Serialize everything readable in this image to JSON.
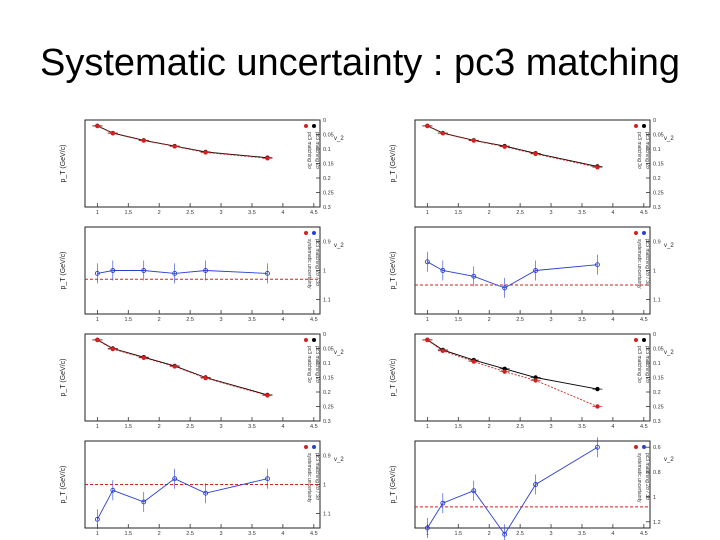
{
  "slide": {
    "title": "Systematic uncertainty : pc3 matching"
  },
  "chart_data": [
    {
      "type": "line",
      "panel": "ratio",
      "column": "left",
      "row": 4,
      "y_axis_title": "p_T (GeV/c)",
      "x_axis_title": "v_2",
      "y_ticks": [
        "1",
        "1.5",
        "2",
        "2.5",
        "3",
        "3.5",
        "4",
        "4.5"
      ],
      "x_ticks": [
        "0.9",
        "1",
        "1.1"
      ],
      "legend": [
        "pc3 matching 2σ / 3σ",
        "systematic uncertainty"
      ],
      "colors": {
        "points": "#2b3fd6",
        "reference": "#d42020"
      },
      "x": [
        1.0,
        1.25,
        1.75,
        2.25,
        2.75,
        3.75
      ],
      "values": [
        1.12,
        1.02,
        1.06,
        0.98,
        1.03,
        0.98
      ],
      "reference": 1.0
    },
    {
      "type": "line",
      "panel": "v2",
      "column": "left",
      "row": 3,
      "y_axis_title": "p_T (GeV/c)",
      "x_axis_title": "v_2",
      "y_ticks": [
        "1",
        "1.5",
        "2",
        "2.5",
        "3",
        "3.5",
        "4",
        "4.5"
      ],
      "x_ticks": [
        "0",
        "0.05",
        "0.1",
        "0.15",
        "0.2",
        "0.25",
        "0.3"
      ],
      "legend": [
        "pc3 matching 2σ",
        "pc3 matching 3σ"
      ],
      "colors": {
        "default": "#000000",
        "varied": "#d42020"
      },
      "x": [
        1.0,
        1.25,
        1.75,
        2.25,
        2.75,
        3.75
      ],
      "series": [
        {
          "values": [
            0.02,
            0.05,
            0.08,
            0.11,
            0.15,
            0.21
          ]
        },
        {
          "values": [
            0.021,
            0.052,
            0.082,
            0.112,
            0.152,
            0.212
          ]
        }
      ]
    },
    {
      "type": "line",
      "panel": "ratio",
      "column": "left",
      "row": 2,
      "y_axis_title": "p_T (GeV/c)",
      "x_axis_title": "v_2",
      "y_ticks": [
        "1",
        "1.5",
        "2",
        "2.5",
        "3",
        "3.5",
        "4",
        "4.5"
      ],
      "x_ticks": [
        "0.9",
        "1",
        "1.1"
      ],
      "legend": [
        "pc3 matching 2σ / 3σ",
        "systematic uncertainty"
      ],
      "colors": {
        "points": "#2b3fd6",
        "reference": "#d42020"
      },
      "x": [
        1.0,
        1.25,
        1.75,
        2.25,
        2.75,
        3.75
      ],
      "values": [
        1.01,
        1.0,
        1.0,
        1.01,
        1.0,
        1.01
      ],
      "reference": 1.03
    },
    {
      "type": "line",
      "panel": "v2",
      "column": "left",
      "row": 1,
      "y_axis_title": "p_T (GeV/c)",
      "x_axis_title": "v_2",
      "y_ticks": [
        "1",
        "1.5",
        "2",
        "2.5",
        "3",
        "3.5",
        "4",
        "4.5"
      ],
      "x_ticks": [
        "0",
        "0.05",
        "0.1",
        "0.15",
        "0.2",
        "0.25",
        "0.3"
      ],
      "legend": [
        "pc3 matching 2σ",
        "pc3 matching 3σ"
      ],
      "colors": {
        "default": "#000000",
        "varied": "#d42020"
      },
      "x": [
        1.0,
        1.25,
        1.75,
        2.25,
        2.75,
        3.75
      ],
      "series": [
        {
          "values": [
            0.02,
            0.045,
            0.07,
            0.09,
            0.11,
            0.13
          ]
        },
        {
          "values": [
            0.021,
            0.046,
            0.071,
            0.091,
            0.112,
            0.132
          ]
        }
      ]
    },
    {
      "type": "line",
      "panel": "ratio",
      "column": "right",
      "row": 4,
      "y_axis_title": "p_T (GeV/c)",
      "x_axis_title": "v_2",
      "y_ticks": [
        "1",
        "1.5",
        "2",
        "2.5",
        "3",
        "3.5",
        "4",
        "4.5"
      ],
      "x_ticks": [
        "0.6",
        "0.8",
        "1",
        "1.2"
      ],
      "legend": [
        "pc3 matching 2σ / 3σ",
        "systematic uncertainty"
      ],
      "colors": {
        "points": "#2b3fd6",
        "reference": "#d42020"
      },
      "x": [
        1.0,
        1.25,
        1.75,
        2.25,
        2.75,
        3.75
      ],
      "values": [
        1.25,
        1.05,
        0.95,
        1.3,
        0.9,
        0.6
      ],
      "reference": 1.08
    },
    {
      "type": "line",
      "panel": "v2",
      "column": "right",
      "row": 3,
      "y_axis_title": "p_T (GeV/c)",
      "x_axis_title": "v_2",
      "y_ticks": [
        "1",
        "1.5",
        "2",
        "2.5",
        "3",
        "3.5",
        "4",
        "4.5"
      ],
      "x_ticks": [
        "0",
        "0.05",
        "0.1",
        "0.15",
        "0.2",
        "0.25",
        "0.3"
      ],
      "legend": [
        "pc3 matching 2σ",
        "pc3 matching 3σ"
      ],
      "colors": {
        "default": "#000000",
        "varied": "#d42020"
      },
      "x": [
        1.0,
        1.25,
        1.75,
        2.25,
        2.75,
        3.75
      ],
      "series": [
        {
          "values": [
            0.02,
            0.055,
            0.09,
            0.12,
            0.15,
            0.19
          ]
        },
        {
          "values": [
            0.021,
            0.058,
            0.095,
            0.13,
            0.16,
            0.25
          ]
        }
      ]
    },
    {
      "type": "line",
      "panel": "ratio",
      "column": "right",
      "row": 2,
      "y_axis_title": "p_T (GeV/c)",
      "x_axis_title": "v_2",
      "y_ticks": [
        "1",
        "1.5",
        "2",
        "2.5",
        "3",
        "3.5",
        "4",
        "4.5"
      ],
      "x_ticks": [
        "0.9",
        "1",
        "1.1"
      ],
      "legend": [
        "pc3 matching 2σ / 3σ",
        "systematic uncertainty"
      ],
      "colors": {
        "points": "#2b3fd6",
        "reference": "#d42020"
      },
      "x": [
        1.0,
        1.25,
        1.75,
        2.25,
        2.75,
        3.75
      ],
      "values": [
        0.97,
        1.0,
        1.02,
        1.06,
        1.0,
        0.98
      ],
      "reference": 1.05
    },
    {
      "type": "line",
      "panel": "v2",
      "column": "right",
      "row": 1,
      "y_axis_title": "p_T (GeV/c)",
      "x_axis_title": "v_2",
      "y_ticks": [
        "1",
        "1.5",
        "2",
        "2.5",
        "3",
        "3.5",
        "4",
        "4.5"
      ],
      "x_ticks": [
        "0",
        "0.05",
        "0.1",
        "0.15",
        "0.2",
        "0.25",
        "0.3"
      ],
      "legend": [
        "pc3 matching 2σ",
        "pc3 matching 3σ"
      ],
      "colors": {
        "default": "#000000",
        "varied": "#d42020"
      },
      "x": [
        1.0,
        1.25,
        1.75,
        2.25,
        2.75,
        3.75
      ],
      "series": [
        {
          "values": [
            0.02,
            0.045,
            0.07,
            0.09,
            0.115,
            0.16
          ]
        },
        {
          "values": [
            0.021,
            0.046,
            0.071,
            0.092,
            0.117,
            0.163
          ]
        }
      ]
    }
  ]
}
